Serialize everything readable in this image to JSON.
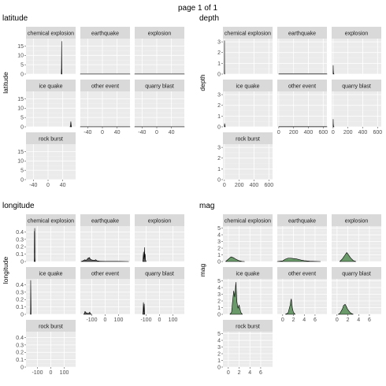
{
  "page_label": "page 1 of 1",
  "chart_data": [
    {
      "type": "area",
      "title": "latitude",
      "ylabel": "latitude",
      "ylim": [
        0,
        19
      ],
      "yticks": [
        0,
        5,
        10,
        15
      ],
      "xlim": [
        -60,
        75
      ],
      "xticks": [
        -40,
        0,
        40
      ],
      "ncol": 3,
      "fill": "#5e5e5e",
      "panels": [
        {
          "name": "chemical explosion",
          "x": [
            36,
            36.5,
            37,
            37.5,
            38
          ],
          "y": [
            0,
            3,
            17.5,
            3,
            0
          ]
        },
        {
          "name": "earthquake",
          "x": [
            -60,
            75
          ],
          "y": [
            0.02,
            0.02
          ]
        },
        {
          "name": "explosion",
          "x": [
            -60,
            75
          ],
          "y": [
            0.03,
            0.03
          ]
        },
        {
          "name": "ice quake",
          "x": [
            60,
            61,
            62,
            63,
            64
          ],
          "y": [
            0,
            0.8,
            2.8,
            0.8,
            0
          ]
        },
        {
          "name": "other event",
          "x": [
            -60,
            75
          ],
          "y": [
            0.03,
            0.03
          ]
        },
        {
          "name": "quarry blast",
          "x": [
            -60,
            75
          ],
          "y": [
            0.04,
            0.04
          ]
        },
        {
          "name": "rock burst",
          "x": [],
          "y": []
        }
      ]
    },
    {
      "type": "area",
      "title": "depth",
      "ylabel": "depth",
      "ylim": [
        0,
        3.3
      ],
      "yticks": [
        0,
        1,
        2,
        3
      ],
      "xlim": [
        -20,
        650
      ],
      "xticks": [
        0,
        200,
        400,
        600
      ],
      "ncol": 3,
      "fill": "#5e5e5e",
      "panels": [
        {
          "name": "chemical explosion",
          "x": [
            0,
            1,
            2,
            3,
            4
          ],
          "y": [
            0,
            3.1,
            0.4,
            0.05,
            0
          ]
        },
        {
          "name": "earthquake",
          "x": [
            0,
            650
          ],
          "y": [
            0.01,
            0.01
          ]
        },
        {
          "name": "explosion",
          "x": [
            0,
            1,
            2,
            5,
            8,
            12
          ],
          "y": [
            0,
            0.8,
            0.4,
            0.1,
            0.05,
            0
          ]
        },
        {
          "name": "ice quake",
          "x": [
            0,
            2,
            5,
            8,
            12
          ],
          "y": [
            0,
            0.3,
            0.2,
            0.05,
            0
          ]
        },
        {
          "name": "other event",
          "x": [
            0,
            650
          ],
          "y": [
            0.01,
            0.01
          ]
        },
        {
          "name": "quarry blast",
          "x": [
            0,
            1,
            2,
            5,
            8,
            12
          ],
          "y": [
            0,
            0.7,
            0.3,
            0.08,
            0.03,
            0
          ]
        },
        {
          "name": "rock burst",
          "x": [],
          "y": []
        }
      ]
    },
    {
      "type": "area",
      "title": "longitude",
      "ylabel": "longitude",
      "ylim": [
        0,
        0.48
      ],
      "yticks": [
        0.0,
        0.1,
        0.2,
        0.3,
        0.4
      ],
      "xlim": [
        -185,
        185
      ],
      "xticks": [
        -100,
        0,
        100
      ],
      "ncol": 3,
      "fill": "#5e5e5e",
      "panels": [
        {
          "name": "chemical explosion",
          "x": [
            -124,
            -123,
            -122,
            -121,
            -120,
            -119,
            -118,
            -117,
            -116
          ],
          "y": [
            0,
            0.03,
            0.41,
            0.12,
            0.45,
            0.38,
            0.05,
            0.02,
            0
          ]
        },
        {
          "name": "earthquake",
          "x": [
            -180,
            -165,
            -155,
            -150,
            -145,
            -140,
            -135,
            -130,
            -125,
            -120,
            -117,
            -112,
            -105,
            -95,
            -85,
            -75,
            -70,
            -65,
            -60,
            -40,
            0,
            100,
            175
          ],
          "y": [
            0,
            0.01,
            0.02,
            0.025,
            0.015,
            0.02,
            0.03,
            0.04,
            0.05,
            0.045,
            0.055,
            0.035,
            0.025,
            0.02,
            0.015,
            0.02,
            0.025,
            0.015,
            0.01,
            0.003,
            0.002,
            0.002,
            0
          ]
        },
        {
          "name": "explosion",
          "x": [
            -125,
            -122,
            -119,
            -117,
            -114,
            -112,
            -110,
            -107,
            -104,
            -100
          ],
          "y": [
            0,
            0.06,
            0.13,
            0.04,
            0.03,
            0.19,
            0.06,
            0.1,
            0.02,
            0
          ]
        },
        {
          "name": "ice quake",
          "x": [
            -152,
            -151,
            -150,
            -149,
            -148,
            -147
          ],
          "y": [
            0,
            0.06,
            0.46,
            0.3,
            0.15,
            0
          ]
        },
        {
          "name": "other event",
          "x": [
            -160,
            -155,
            -150,
            -145,
            -140,
            -130,
            -120,
            -115,
            -110,
            -100
          ],
          "y": [
            0,
            0.01,
            0.04,
            0.025,
            0.02,
            0.01,
            0.015,
            0.03,
            0.005,
            0
          ]
        },
        {
          "name": "quarry blast",
          "x": [
            -125,
            -122,
            -120,
            -118,
            -116,
            -114,
            -112,
            -110
          ],
          "y": [
            0,
            0.06,
            0.16,
            0.05,
            0.03,
            0.14,
            0.04,
            0
          ]
        },
        {
          "name": "rock burst",
          "x": [],
          "y": []
        }
      ]
    },
    {
      "type": "area",
      "title": "mag",
      "ylabel": "mag",
      "ylim": [
        0,
        5.3
      ],
      "yticks": [
        0,
        1,
        2,
        3,
        4,
        5
      ],
      "xlim": [
        -1,
        8.2
      ],
      "xticks": [
        0,
        2,
        4,
        6
      ],
      "ncol": 3,
      "fill": "#6a9a6a",
      "panels": [
        {
          "name": "chemical explosion",
          "x": [
            -0.5,
            0,
            0.5,
            1,
            1.5,
            2,
            2.5,
            3
          ],
          "y": [
            0,
            0.35,
            0.7,
            0.55,
            0.3,
            0.12,
            0.03,
            0
          ]
        },
        {
          "name": "earthquake",
          "x": [
            -1,
            0,
            0.5,
            1,
            1.5,
            2,
            2.5,
            3,
            3.5,
            4,
            5,
            6,
            7
          ],
          "y": [
            0,
            0.1,
            0.35,
            0.5,
            0.5,
            0.45,
            0.4,
            0.3,
            0.2,
            0.12,
            0.05,
            0.02,
            0
          ]
        },
        {
          "name": "explosion",
          "x": [
            0.5,
            1,
            1.5,
            1.8,
            2,
            2.5,
            3,
            3.5
          ],
          "y": [
            0,
            0.4,
            1.0,
            1.35,
            1.15,
            0.55,
            0.15,
            0
          ]
        },
        {
          "name": "ice quake",
          "x": [
            0.3,
            0.6,
            0.8,
            1.0,
            1.2,
            1.4,
            1.6,
            1.8,
            2.0,
            2.3,
            2.6
          ],
          "y": [
            0,
            0.3,
            2.0,
            3.5,
            2.6,
            4.8,
            1.8,
            0.9,
            1.4,
            0.3,
            0
          ]
        },
        {
          "name": "other event",
          "x": [
            0.5,
            1.0,
            1.2,
            1.4,
            1.5,
            1.6,
            1.7,
            1.8,
            2.0,
            2.3
          ],
          "y": [
            0,
            0.2,
            0.8,
            1.4,
            2.0,
            2.3,
            1.6,
            0.9,
            0.3,
            0
          ]
        },
        {
          "name": "quarry blast",
          "x": [
            0.2,
            0.5,
            1.0,
            1.2,
            1.5,
            1.7,
            2.0,
            2.5,
            3.0
          ],
          "y": [
            0,
            0.1,
            0.8,
            1.3,
            1.5,
            1.2,
            0.7,
            0.2,
            0
          ]
        },
        {
          "name": "rock burst",
          "x": [],
          "y": []
        }
      ]
    }
  ]
}
